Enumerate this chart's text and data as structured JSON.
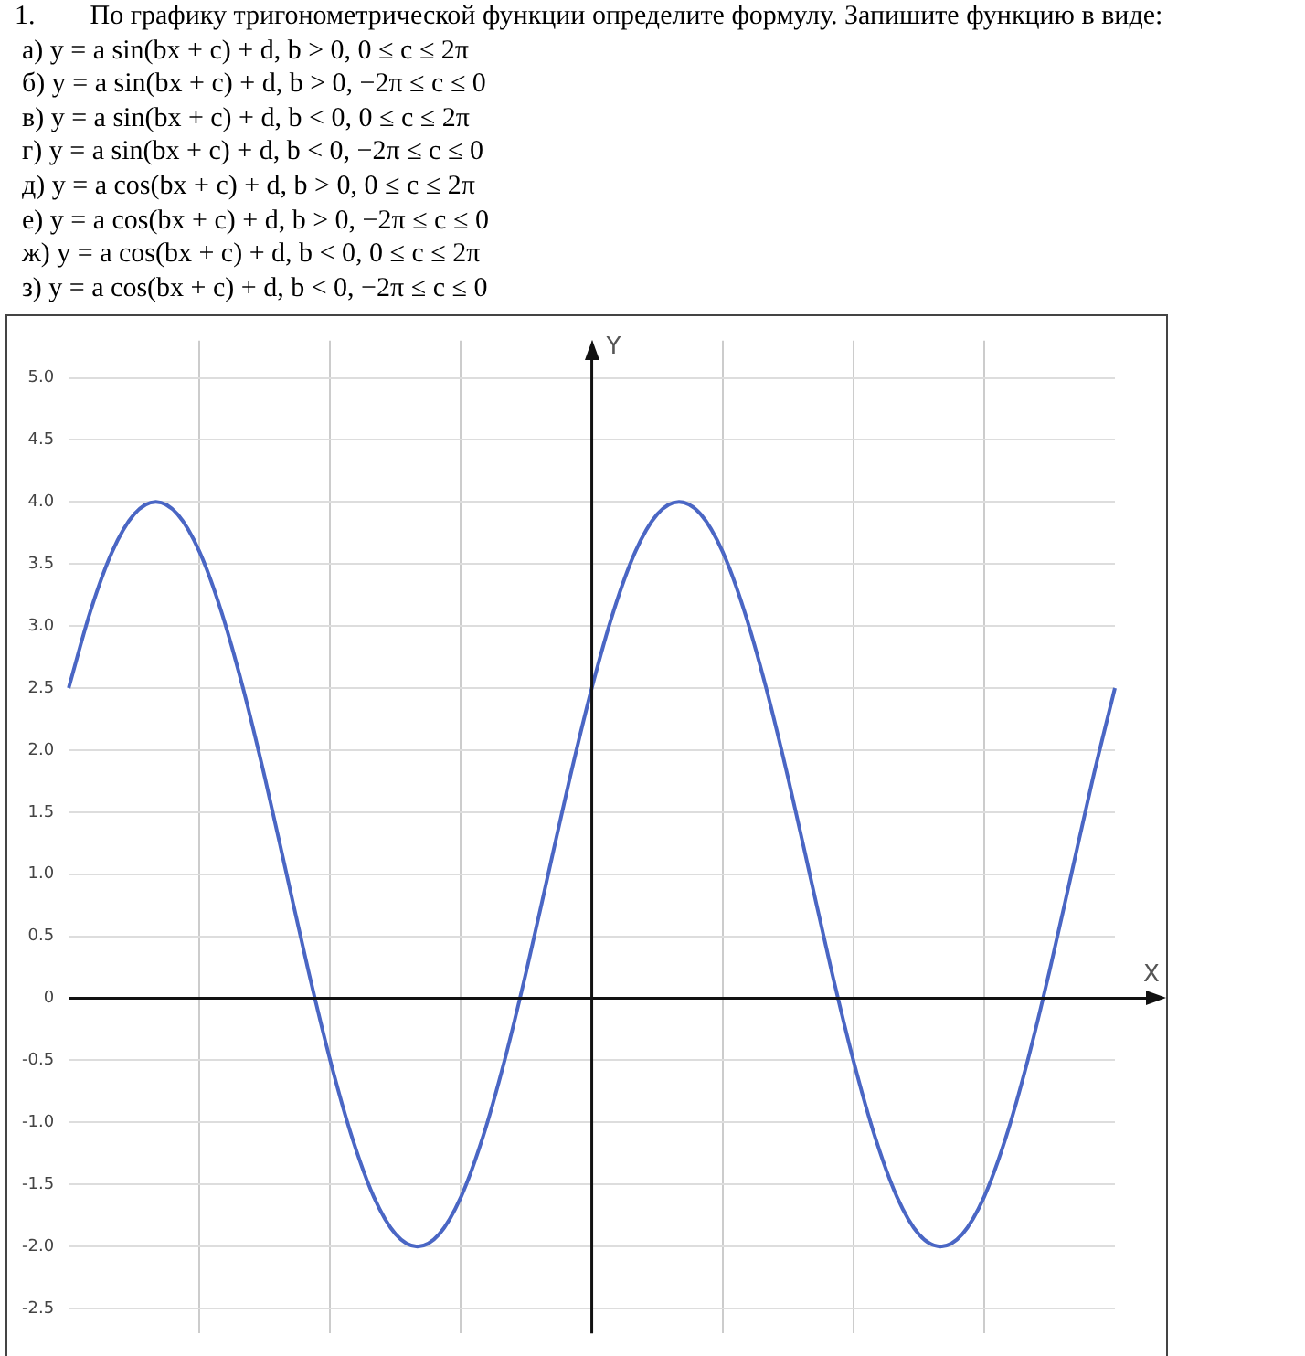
{
  "chart_data": {
    "type": "line",
    "title": "1.  По графику тригонометрической функции определите формулу. Запишите функцию в виде:",
    "annotations": [
      "а) y = a sin(bx + c) + d, b > 0, 0 ≤ c ≤ 2π",
      "б) y = a sin(bx + c) + d, b > 0, −2π ≤ c ≤ 0",
      "в) y = a sin(bx + c) + d, b < 0, 0 ≤ c ≤ 2π",
      "г) y = a sin(bx + c) + d, b < 0, −2π ≤ c ≤ 0",
      "д) y = a cos(bx + c) + d, b > 0, 0 ≤ c ≤ 2π",
      "е) y = a cos(bx + c) + d, b > 0, −2π ≤ c ≤ 0",
      "ж) y = a cos(bx + c) + d, b < 0, 0 ≤ c ≤ 2π",
      "з) y = a cos(bx + c) + d, b < 0, −2π ≤ c ≤ 0"
    ],
    "xlabel": "X",
    "ylabel": "Y",
    "categories": [
      null,
      null,
      null,
      null,
      null,
      null,
      null,
      null,
      null,
      null,
      null,
      null,
      null,
      null,
      null,
      null,
      null,
      null,
      null,
      null,
      null,
      null,
      null,
      null,
      null,
      null,
      null,
      null,
      null,
      null,
      null,
      null,
      null,
      null,
      null,
      null,
      null,
      null,
      null,
      null,
      null,
      null,
      null,
      null,
      null,
      null,
      null,
      null,
      null
    ],
    "series": [
      {
        "color": "#4a66c4",
        "values": [
          2.5,
          3.12,
          3.6,
          3.9,
          4,
          3.9,
          3.6,
          3.12,
          2.5,
          1.78,
          1,
          0.22,
          -0.5,
          -1.12,
          -1.6,
          -1.9,
          -2,
          -1.9,
          -1.6,
          -1.12,
          -0.5,
          0.22,
          1,
          1.78,
          2.5,
          3.12,
          3.6,
          3.9,
          4,
          3.9,
          3.6,
          3.12,
          2.5,
          1.78,
          1,
          0.22,
          -0.5,
          -1.12,
          -1.6,
          -1.9,
          -2,
          -1.9,
          -1.6,
          -1.12,
          -0.5,
          0.22,
          1,
          1.78,
          2.5
        ]
      }
    ],
    "ylim": [
      -2.7,
      5.3
    ],
    "yticks": [
      {
        "value": -2.5,
        "label": "-2.5"
      },
      {
        "value": -2,
        "label": "-2.0"
      },
      {
        "value": -1.5,
        "label": "-1.5"
      },
      {
        "value": -1,
        "label": "-1.0"
      },
      {
        "value": -0.5,
        "label": "-0.5"
      },
      0,
      {
        "value": 0.5,
        "label": "0.5"
      },
      {
        "value": 1,
        "label": "1.0"
      },
      {
        "value": 1.5,
        "label": "1.5"
      },
      {
        "value": 2,
        "label": "2.0"
      },
      {
        "value": 2.5,
        "label": "2.5"
      },
      {
        "value": 3,
        "label": "3.0"
      },
      {
        "value": 3.5,
        "label": "3.5"
      },
      {
        "value": 4,
        "label": "4.0"
      },
      {
        "value": 4.5,
        "label": "4.5"
      },
      {
        "value": 5,
        "label": "5.0"
      }
    ],
    "grid": true,
    "marker": "none",
    "line_style": "solid",
    "tick_labels": "y"
  }
}
